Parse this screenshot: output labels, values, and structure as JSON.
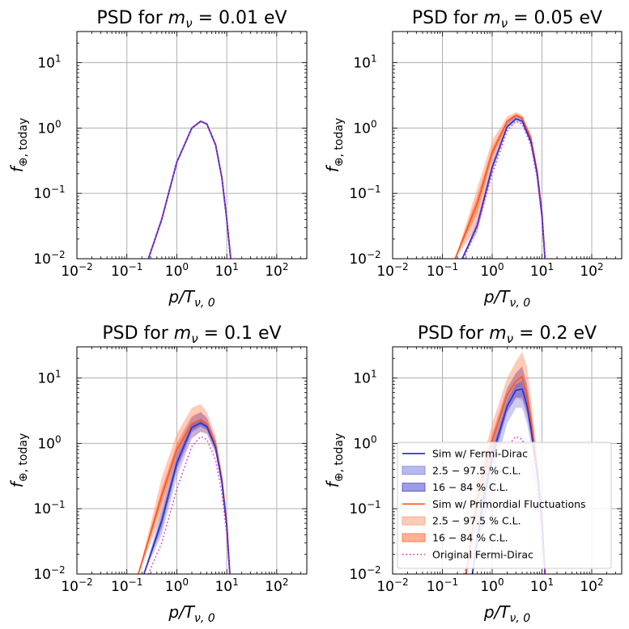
{
  "figure": {
    "colors": {
      "fermi_dirac": "#3333cc",
      "fermi_dirac_band_outer": "#8080e6",
      "fermi_dirac_band_inner": "#4d4dcc",
      "primordial": "#ff5a1f",
      "primordial_band_outer": "#ffa080",
      "primordial_band_inner": "#ff7040",
      "original": "#ee22cc",
      "grid": "#b0b0b0"
    }
  },
  "chart_data": [
    {
      "type": "line",
      "title_prefix": "PSD for ",
      "title_symbol": "m",
      "title_sub": "ν",
      "title_value": " = 0.01 eV",
      "xlabel": "p/T",
      "xlabel_sub": "ν, 0",
      "ylabel": "f",
      "ylabel_sub": "⊕, today",
      "xscale": "log",
      "yscale": "log",
      "xlim": [
        0.01,
        400
      ],
      "ylim": [
        0.01,
        30
      ],
      "xticks": [
        {
          "base": "10",
          "exp": "−2"
        },
        {
          "base": "10",
          "exp": "−1"
        },
        {
          "base": "10",
          "exp": "0"
        },
        {
          "base": "10",
          "exp": "1"
        },
        {
          "base": "10",
          "exp": "2"
        }
      ],
      "yticks": [
        {
          "base": "10",
          "exp": "−2"
        },
        {
          "base": "10",
          "exp": "−1"
        },
        {
          "base": "10",
          "exp": "0"
        },
        {
          "base": "10",
          "exp": "1"
        }
      ],
      "grid": true,
      "series": [
        {
          "key": "primordial",
          "x": [
            0.27,
            0.5,
            1,
            2,
            3,
            4,
            6,
            8,
            10,
            12
          ],
          "y": [
            0.01,
            0.04,
            0.3,
            1.0,
            1.27,
            1.15,
            0.55,
            0.17,
            0.04,
            0.01
          ]
        },
        {
          "key": "fermi_dirac",
          "x": [
            0.27,
            0.5,
            1,
            2,
            3,
            4,
            6,
            8,
            10,
            12
          ],
          "y": [
            0.01,
            0.04,
            0.3,
            1.0,
            1.27,
            1.15,
            0.55,
            0.17,
            0.04,
            0.01
          ]
        },
        {
          "key": "original",
          "x": [
            0.27,
            0.5,
            1,
            2,
            3,
            4,
            6,
            8,
            10,
            12
          ],
          "y": [
            0.01,
            0.04,
            0.3,
            1.0,
            1.27,
            1.15,
            0.55,
            0.17,
            0.04,
            0.01
          ]
        }
      ]
    },
    {
      "type": "line",
      "title_prefix": "PSD for ",
      "title_symbol": "m",
      "title_sub": "ν",
      "title_value": " = 0.05 eV",
      "xlabel": "p/T",
      "xlabel_sub": "ν, 0",
      "ylabel": "f",
      "ylabel_sub": "⊕, today",
      "xscale": "log",
      "yscale": "log",
      "xlim": [
        0.01,
        400
      ],
      "ylim": [
        0.01,
        30
      ],
      "xticks": [
        {
          "base": "10",
          "exp": "−2"
        },
        {
          "base": "10",
          "exp": "−1"
        },
        {
          "base": "10",
          "exp": "0"
        },
        {
          "base": "10",
          "exp": "1"
        },
        {
          "base": "10",
          "exp": "2"
        }
      ],
      "yticks": [
        {
          "base": "10",
          "exp": "−2"
        },
        {
          "base": "10",
          "exp": "−1"
        },
        {
          "base": "10",
          "exp": "0"
        },
        {
          "base": "10",
          "exp": "1"
        }
      ],
      "grid": true,
      "bands": [
        {
          "key": "primordial_outer",
          "x": [
            0.18,
            0.5,
            1,
            2,
            3,
            4,
            6,
            8,
            10,
            11.5
          ],
          "lo": [
            0.01,
            0.03,
            0.25,
            1.0,
            1.35,
            1.25,
            0.6,
            0.2,
            0.045,
            0.01
          ],
          "hi": [
            0.01,
            0.12,
            0.65,
            1.5,
            1.75,
            1.6,
            0.8,
            0.25,
            0.06,
            0.01
          ]
        },
        {
          "key": "primordial_inner",
          "x": [
            0.18,
            0.5,
            1,
            2,
            3,
            4,
            6,
            8,
            10,
            11.5
          ],
          "lo": [
            0.01,
            0.05,
            0.35,
            1.15,
            1.45,
            1.35,
            0.65,
            0.21,
            0.05,
            0.01
          ],
          "hi": [
            0.01,
            0.09,
            0.5,
            1.35,
            1.65,
            1.5,
            0.75,
            0.24,
            0.055,
            0.01
          ]
        },
        {
          "key": "fermi_dirac_outer",
          "x": [
            0.25,
            0.5,
            1,
            2,
            3,
            4,
            6,
            8,
            10,
            11.5
          ],
          "lo": [
            0.01,
            0.025,
            0.2,
            0.95,
            1.25,
            1.15,
            0.55,
            0.18,
            0.042,
            0.01
          ],
          "hi": [
            0.01,
            0.04,
            0.3,
            1.2,
            1.5,
            1.4,
            0.7,
            0.22,
            0.05,
            0.01
          ]
        }
      ],
      "series": [
        {
          "key": "primordial",
          "x": [
            0.18,
            0.5,
            1,
            2,
            3,
            4,
            6,
            8,
            10,
            11.5
          ],
          "y": [
            0.01,
            0.07,
            0.42,
            1.25,
            1.55,
            1.42,
            0.7,
            0.22,
            0.05,
            0.01
          ]
        },
        {
          "key": "fermi_dirac",
          "x": [
            0.25,
            0.5,
            1,
            2,
            3,
            4,
            6,
            8,
            10,
            11.5
          ],
          "y": [
            0.01,
            0.032,
            0.25,
            1.05,
            1.38,
            1.28,
            0.62,
            0.2,
            0.045,
            0.01
          ]
        },
        {
          "key": "original",
          "x": [
            0.27,
            0.5,
            1,
            2,
            3,
            4,
            6,
            8,
            10,
            11.5
          ],
          "y": [
            0.01,
            0.03,
            0.2,
            0.9,
            1.27,
            1.15,
            0.55,
            0.17,
            0.04,
            0.01
          ]
        }
      ]
    },
    {
      "type": "line",
      "title_prefix": "PSD for ",
      "title_symbol": "m",
      "title_sub": "ν",
      "title_value": " = 0.1 eV",
      "xlabel": "p/T",
      "xlabel_sub": "ν, 0",
      "ylabel": "f",
      "ylabel_sub": "⊕, today",
      "xscale": "log",
      "yscale": "log",
      "xlim": [
        0.01,
        400
      ],
      "ylim": [
        0.01,
        30
      ],
      "xticks": [
        {
          "base": "10",
          "exp": "−2"
        },
        {
          "base": "10",
          "exp": "−1"
        },
        {
          "base": "10",
          "exp": "0"
        },
        {
          "base": "10",
          "exp": "1"
        },
        {
          "base": "10",
          "exp": "2"
        }
      ],
      "yticks": [
        {
          "base": "10",
          "exp": "−2"
        },
        {
          "base": "10",
          "exp": "−1"
        },
        {
          "base": "10",
          "exp": "0"
        },
        {
          "base": "10",
          "exp": "1"
        }
      ],
      "grid": true,
      "bands": [
        {
          "key": "primordial_outer",
          "x": [
            0.17,
            0.5,
            1,
            2,
            3,
            4,
            6,
            8,
            10,
            11.5
          ],
          "lo": [
            0.01,
            0.08,
            0.4,
            1.2,
            1.5,
            1.4,
            0.7,
            0.22,
            0.05,
            0.01
          ],
          "hi": [
            0.01,
            0.3,
            1.4,
            3.5,
            4.0,
            3.0,
            1.3,
            0.35,
            0.07,
            0.01
          ]
        },
        {
          "key": "primordial_inner",
          "x": [
            0.17,
            0.5,
            1,
            2,
            3,
            4,
            6,
            8,
            10,
            11.5
          ],
          "lo": [
            0.01,
            0.12,
            0.6,
            1.6,
            1.9,
            1.7,
            0.85,
            0.25,
            0.055,
            0.01
          ],
          "hi": [
            0.01,
            0.2,
            1.0,
            2.6,
            3.0,
            2.4,
            1.1,
            0.3,
            0.065,
            0.01
          ]
        },
        {
          "key": "fermi_dirac_outer",
          "x": [
            0.22,
            0.5,
            1,
            2,
            3,
            4,
            6,
            8,
            10,
            11.5
          ],
          "lo": [
            0.01,
            0.04,
            0.3,
            1.2,
            1.5,
            1.4,
            0.7,
            0.21,
            0.048,
            0.01
          ],
          "hi": [
            0.01,
            0.1,
            0.8,
            2.5,
            3.0,
            2.5,
            1.1,
            0.3,
            0.06,
            0.01
          ]
        },
        {
          "key": "fermi_dirac_inner",
          "x": [
            0.22,
            0.5,
            1,
            2,
            3,
            4,
            6,
            8,
            10,
            11.5
          ],
          "lo": [
            0.01,
            0.05,
            0.4,
            1.5,
            1.8,
            1.6,
            0.8,
            0.24,
            0.052,
            0.01
          ],
          "hi": [
            0.01,
            0.08,
            0.6,
            2.0,
            2.4,
            2.0,
            0.95,
            0.27,
            0.056,
            0.01
          ]
        }
      ],
      "series": [
        {
          "key": "primordial",
          "x": [
            0.17,
            0.5,
            1,
            2,
            3,
            4,
            6,
            8,
            10,
            11.5
          ],
          "y": [
            0.01,
            0.16,
            0.8,
            2.0,
            2.3,
            2.0,
            0.95,
            0.28,
            0.06,
            0.01
          ]
        },
        {
          "key": "fermi_dirac",
          "x": [
            0.22,
            0.5,
            1,
            2,
            3,
            4,
            6,
            8,
            10,
            11.5
          ],
          "y": [
            0.01,
            0.065,
            0.5,
            1.75,
            2.05,
            1.8,
            0.85,
            0.25,
            0.054,
            0.01
          ]
        },
        {
          "key": "original",
          "x": [
            0.27,
            0.5,
            1,
            2,
            3,
            4,
            6,
            8,
            10,
            11.5
          ],
          "y": [
            0.01,
            0.03,
            0.2,
            0.9,
            1.27,
            1.15,
            0.55,
            0.17,
            0.04,
            0.01
          ]
        }
      ]
    },
    {
      "type": "line",
      "title_prefix": "PSD for ",
      "title_symbol": "m",
      "title_sub": "ν",
      "title_value": " = 0.2 eV",
      "xlabel": "p/T",
      "xlabel_sub": "ν, 0",
      "ylabel": "f",
      "ylabel_sub": "⊕, today",
      "xscale": "log",
      "yscale": "log",
      "xlim": [
        0.01,
        400
      ],
      "ylim": [
        0.01,
        30
      ],
      "xticks": [
        {
          "base": "10",
          "exp": "−2"
        },
        {
          "base": "10",
          "exp": "−1"
        },
        {
          "base": "10",
          "exp": "0"
        },
        {
          "base": "10",
          "exp": "1"
        },
        {
          "base": "10",
          "exp": "2"
        }
      ],
      "yticks": [
        {
          "base": "10",
          "exp": "−2"
        },
        {
          "base": "10",
          "exp": "−1"
        },
        {
          "base": "10",
          "exp": "0"
        },
        {
          "base": "10",
          "exp": "1"
        }
      ],
      "grid": true,
      "legend_position": "lower-right",
      "legend": [
        {
          "key": "fermi_dirac",
          "kind": "line",
          "label": "Sim w/ Fermi-Dirac"
        },
        {
          "key": "fermi_dirac_band_outer",
          "kind": "patch",
          "label": "2.5 − 97.5 % C.L."
        },
        {
          "key": "fermi_dirac_band_inner",
          "kind": "patch",
          "label": "16 − 84 % C.L."
        },
        {
          "key": "primordial",
          "kind": "line",
          "label": "Sim w/ Primordial Fluctuations"
        },
        {
          "key": "primordial_band_outer",
          "kind": "patch",
          "label": "2.5 − 97.5 % C.L."
        },
        {
          "key": "primordial_band_inner",
          "kind": "patch",
          "label": "16 − 84 % C.L."
        },
        {
          "key": "original",
          "kind": "dotted",
          "label": "Original Fermi-Dirac"
        }
      ],
      "bands": [
        {
          "key": "primordial_outer",
          "x": [
            0.3,
            0.5,
            1,
            2,
            3,
            4,
            5,
            6,
            8,
            10,
            11.5
          ],
          "lo": [
            0.01,
            0.06,
            0.5,
            3.0,
            5.0,
            4.5,
            2.5,
            1.2,
            0.3,
            0.06,
            0.01
          ],
          "hi": [
            0.01,
            0.3,
            2.0,
            10.0,
            18.0,
            25.0,
            15.0,
            5.0,
            0.7,
            0.1,
            0.01
          ]
        },
        {
          "key": "primordial_inner",
          "x": [
            0.3,
            0.5,
            1,
            2,
            3,
            4,
            5,
            6,
            8,
            10,
            11.5
          ],
          "lo": [
            0.01,
            0.1,
            0.8,
            4.5,
            7.0,
            7.5,
            4.0,
            1.8,
            0.4,
            0.07,
            0.01
          ],
          "hi": [
            0.01,
            0.2,
            1.4,
            7.0,
            12.0,
            15.0,
            8.0,
            3.2,
            0.55,
            0.09,
            0.01
          ]
        },
        {
          "key": "fermi_dirac_outer",
          "x": [
            0.4,
            0.6,
            1,
            2,
            3,
            4,
            5,
            6,
            8,
            10,
            11.5
          ],
          "lo": [
            0.01,
            0.04,
            0.3,
            2.0,
            3.5,
            3.5,
            2.0,
            1.0,
            0.25,
            0.05,
            0.01
          ],
          "hi": [
            0.01,
            0.2,
            1.2,
            7.0,
            12.0,
            15.0,
            8.0,
            3.0,
            0.5,
            0.09,
            0.01
          ]
        },
        {
          "key": "fermi_dirac_inner",
          "x": [
            0.4,
            0.6,
            1,
            2,
            3,
            4,
            5,
            6,
            8,
            10,
            11.5
          ],
          "lo": [
            0.01,
            0.06,
            0.5,
            3.0,
            5.0,
            5.0,
            3.0,
            1.4,
            0.3,
            0.06,
            0.01
          ],
          "hi": [
            0.01,
            0.12,
            0.8,
            4.5,
            8.0,
            9.0,
            5.0,
            2.0,
            0.4,
            0.075,
            0.01
          ]
        }
      ],
      "series": [
        {
          "key": "primordial",
          "x": [
            0.3,
            0.5,
            1,
            2,
            3,
            4,
            5,
            6,
            8,
            10,
            11.5
          ],
          "y": [
            0.01,
            0.14,
            1.1,
            5.5,
            9.0,
            10.5,
            5.5,
            2.3,
            0.45,
            0.08,
            0.01
          ]
        },
        {
          "key": "fermi_dirac",
          "x": [
            0.4,
            0.6,
            1,
            2,
            3,
            4,
            5,
            6,
            8,
            10,
            11.5
          ],
          "y": [
            0.01,
            0.085,
            0.65,
            3.7,
            6.5,
            6.8,
            3.8,
            1.7,
            0.35,
            0.065,
            0.01
          ]
        },
        {
          "key": "original",
          "x": [
            0.27,
            0.5,
            1,
            2,
            3,
            4,
            6,
            8,
            10,
            11.5
          ],
          "y": [
            0.01,
            0.03,
            0.2,
            0.9,
            1.27,
            1.15,
            0.55,
            0.17,
            0.04,
            0.01
          ]
        }
      ]
    }
  ]
}
